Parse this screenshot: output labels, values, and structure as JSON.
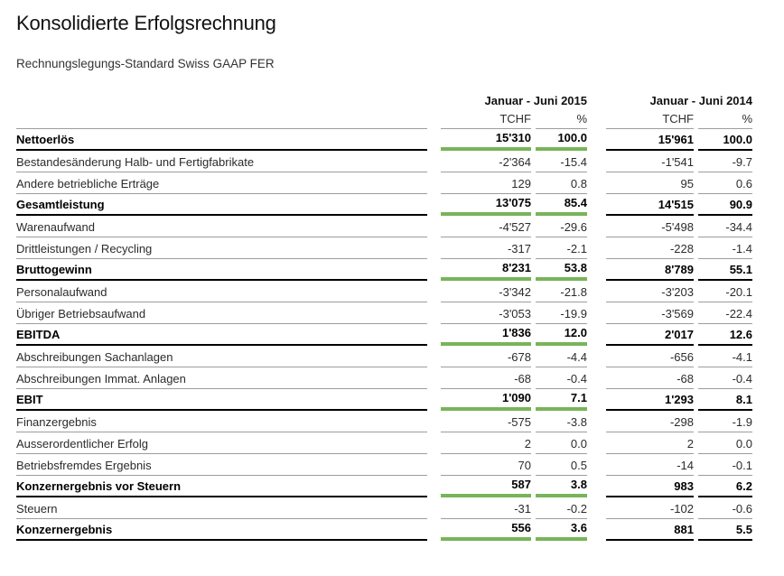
{
  "document": {
    "title": "Konsolidierte Erfolgsrechnung",
    "subtitle": "Rechnungslegungs-Standard Swiss GAAP FER"
  },
  "table": {
    "period_2015": "Januar - Juni 2015",
    "period_2014": "Januar - Juni 2014",
    "units": {
      "tchf_2015": "TCHF",
      "pct_2015": "%",
      "tchf_2014": "TCHF",
      "pct_2014": "%"
    },
    "rows": [
      {
        "label": "Nettoerlös",
        "tchf_2015": "15'310",
        "pct_2015": "100.0",
        "tchf_2014": "15'961",
        "pct_2014": "100.0",
        "emphasis": true
      },
      {
        "label": "Bestandesänderung Halb- und Fertigfabrikate",
        "tchf_2015": "-2'364",
        "pct_2015": "-15.4",
        "tchf_2014": "-1'541",
        "pct_2014": "-9.7",
        "emphasis": false
      },
      {
        "label": "Andere betriebliche Erträge",
        "tchf_2015": "129",
        "pct_2015": "0.8",
        "tchf_2014": "95",
        "pct_2014": "0.6",
        "emphasis": false
      },
      {
        "label": "Gesamtleistung",
        "tchf_2015": "13'075",
        "pct_2015": "85.4",
        "tchf_2014": "14'515",
        "pct_2014": "90.9",
        "emphasis": true
      },
      {
        "label": "Warenaufwand",
        "tchf_2015": "-4'527",
        "pct_2015": "-29.6",
        "tchf_2014": "-5'498",
        "pct_2014": "-34.4",
        "emphasis": false
      },
      {
        "label": "Drittleistungen / Recycling",
        "tchf_2015": "-317",
        "pct_2015": "-2.1",
        "tchf_2014": "-228",
        "pct_2014": "-1.4",
        "emphasis": false
      },
      {
        "label": "Bruttogewinn",
        "tchf_2015": "8'231",
        "pct_2015": "53.8",
        "tchf_2014": "8'789",
        "pct_2014": "55.1",
        "emphasis": true
      },
      {
        "label": "Personalaufwand",
        "tchf_2015": "-3'342",
        "pct_2015": "-21.8",
        "tchf_2014": "-3'203",
        "pct_2014": "-20.1",
        "emphasis": false
      },
      {
        "label": "Übriger Betriebsaufwand",
        "tchf_2015": "-3'053",
        "pct_2015": "-19.9",
        "tchf_2014": "-3'569",
        "pct_2014": "-22.4",
        "emphasis": false
      },
      {
        "label": "EBITDA",
        "tchf_2015": "1'836",
        "pct_2015": "12.0",
        "tchf_2014": "2'017",
        "pct_2014": "12.6",
        "emphasis": true
      },
      {
        "label": "Abschreibungen Sachanlagen",
        "tchf_2015": "-678",
        "pct_2015": "-4.4",
        "tchf_2014": "-656",
        "pct_2014": "-4.1",
        "emphasis": false
      },
      {
        "label": "Abschreibungen Immat. Anlagen",
        "tchf_2015": "-68",
        "pct_2015": "-0.4",
        "tchf_2014": "-68",
        "pct_2014": "-0.4",
        "emphasis": false
      },
      {
        "label": "EBIT",
        "tchf_2015": "1'090",
        "pct_2015": "7.1",
        "tchf_2014": "1'293",
        "pct_2014": "8.1",
        "emphasis": true
      },
      {
        "label": "Finanzergebnis",
        "tchf_2015": "-575",
        "pct_2015": "-3.8",
        "tchf_2014": "-298",
        "pct_2014": "-1.9",
        "emphasis": false
      },
      {
        "label": "Ausserordentlicher Erfolg",
        "tchf_2015": "2",
        "pct_2015": "0.0",
        "tchf_2014": "2",
        "pct_2014": "0.0",
        "emphasis": false
      },
      {
        "label": "Betriebsfremdes Ergebnis",
        "tchf_2015": "70",
        "pct_2015": "0.5",
        "tchf_2014": "-14",
        "pct_2014": "-0.1",
        "emphasis": false
      },
      {
        "label": "Konzernergebnis vor Steuern",
        "tchf_2015": "587",
        "pct_2015": "3.8",
        "tchf_2014": "983",
        "pct_2014": "6.2",
        "emphasis": true
      },
      {
        "label": "Steuern",
        "tchf_2015": "-31",
        "pct_2015": "-0.2",
        "tchf_2014": "-102",
        "pct_2014": "-0.6",
        "emphasis": false
      },
      {
        "label": "Konzernergebnis",
        "tchf_2015": "556",
        "pct_2015": "3.6",
        "tchf_2014": "881",
        "pct_2014": "5.5",
        "emphasis": true
      }
    ]
  },
  "colors": {
    "accent_green": "#78b45a",
    "rule_gray": "#9d9d9d",
    "rule_black": "#000000"
  }
}
